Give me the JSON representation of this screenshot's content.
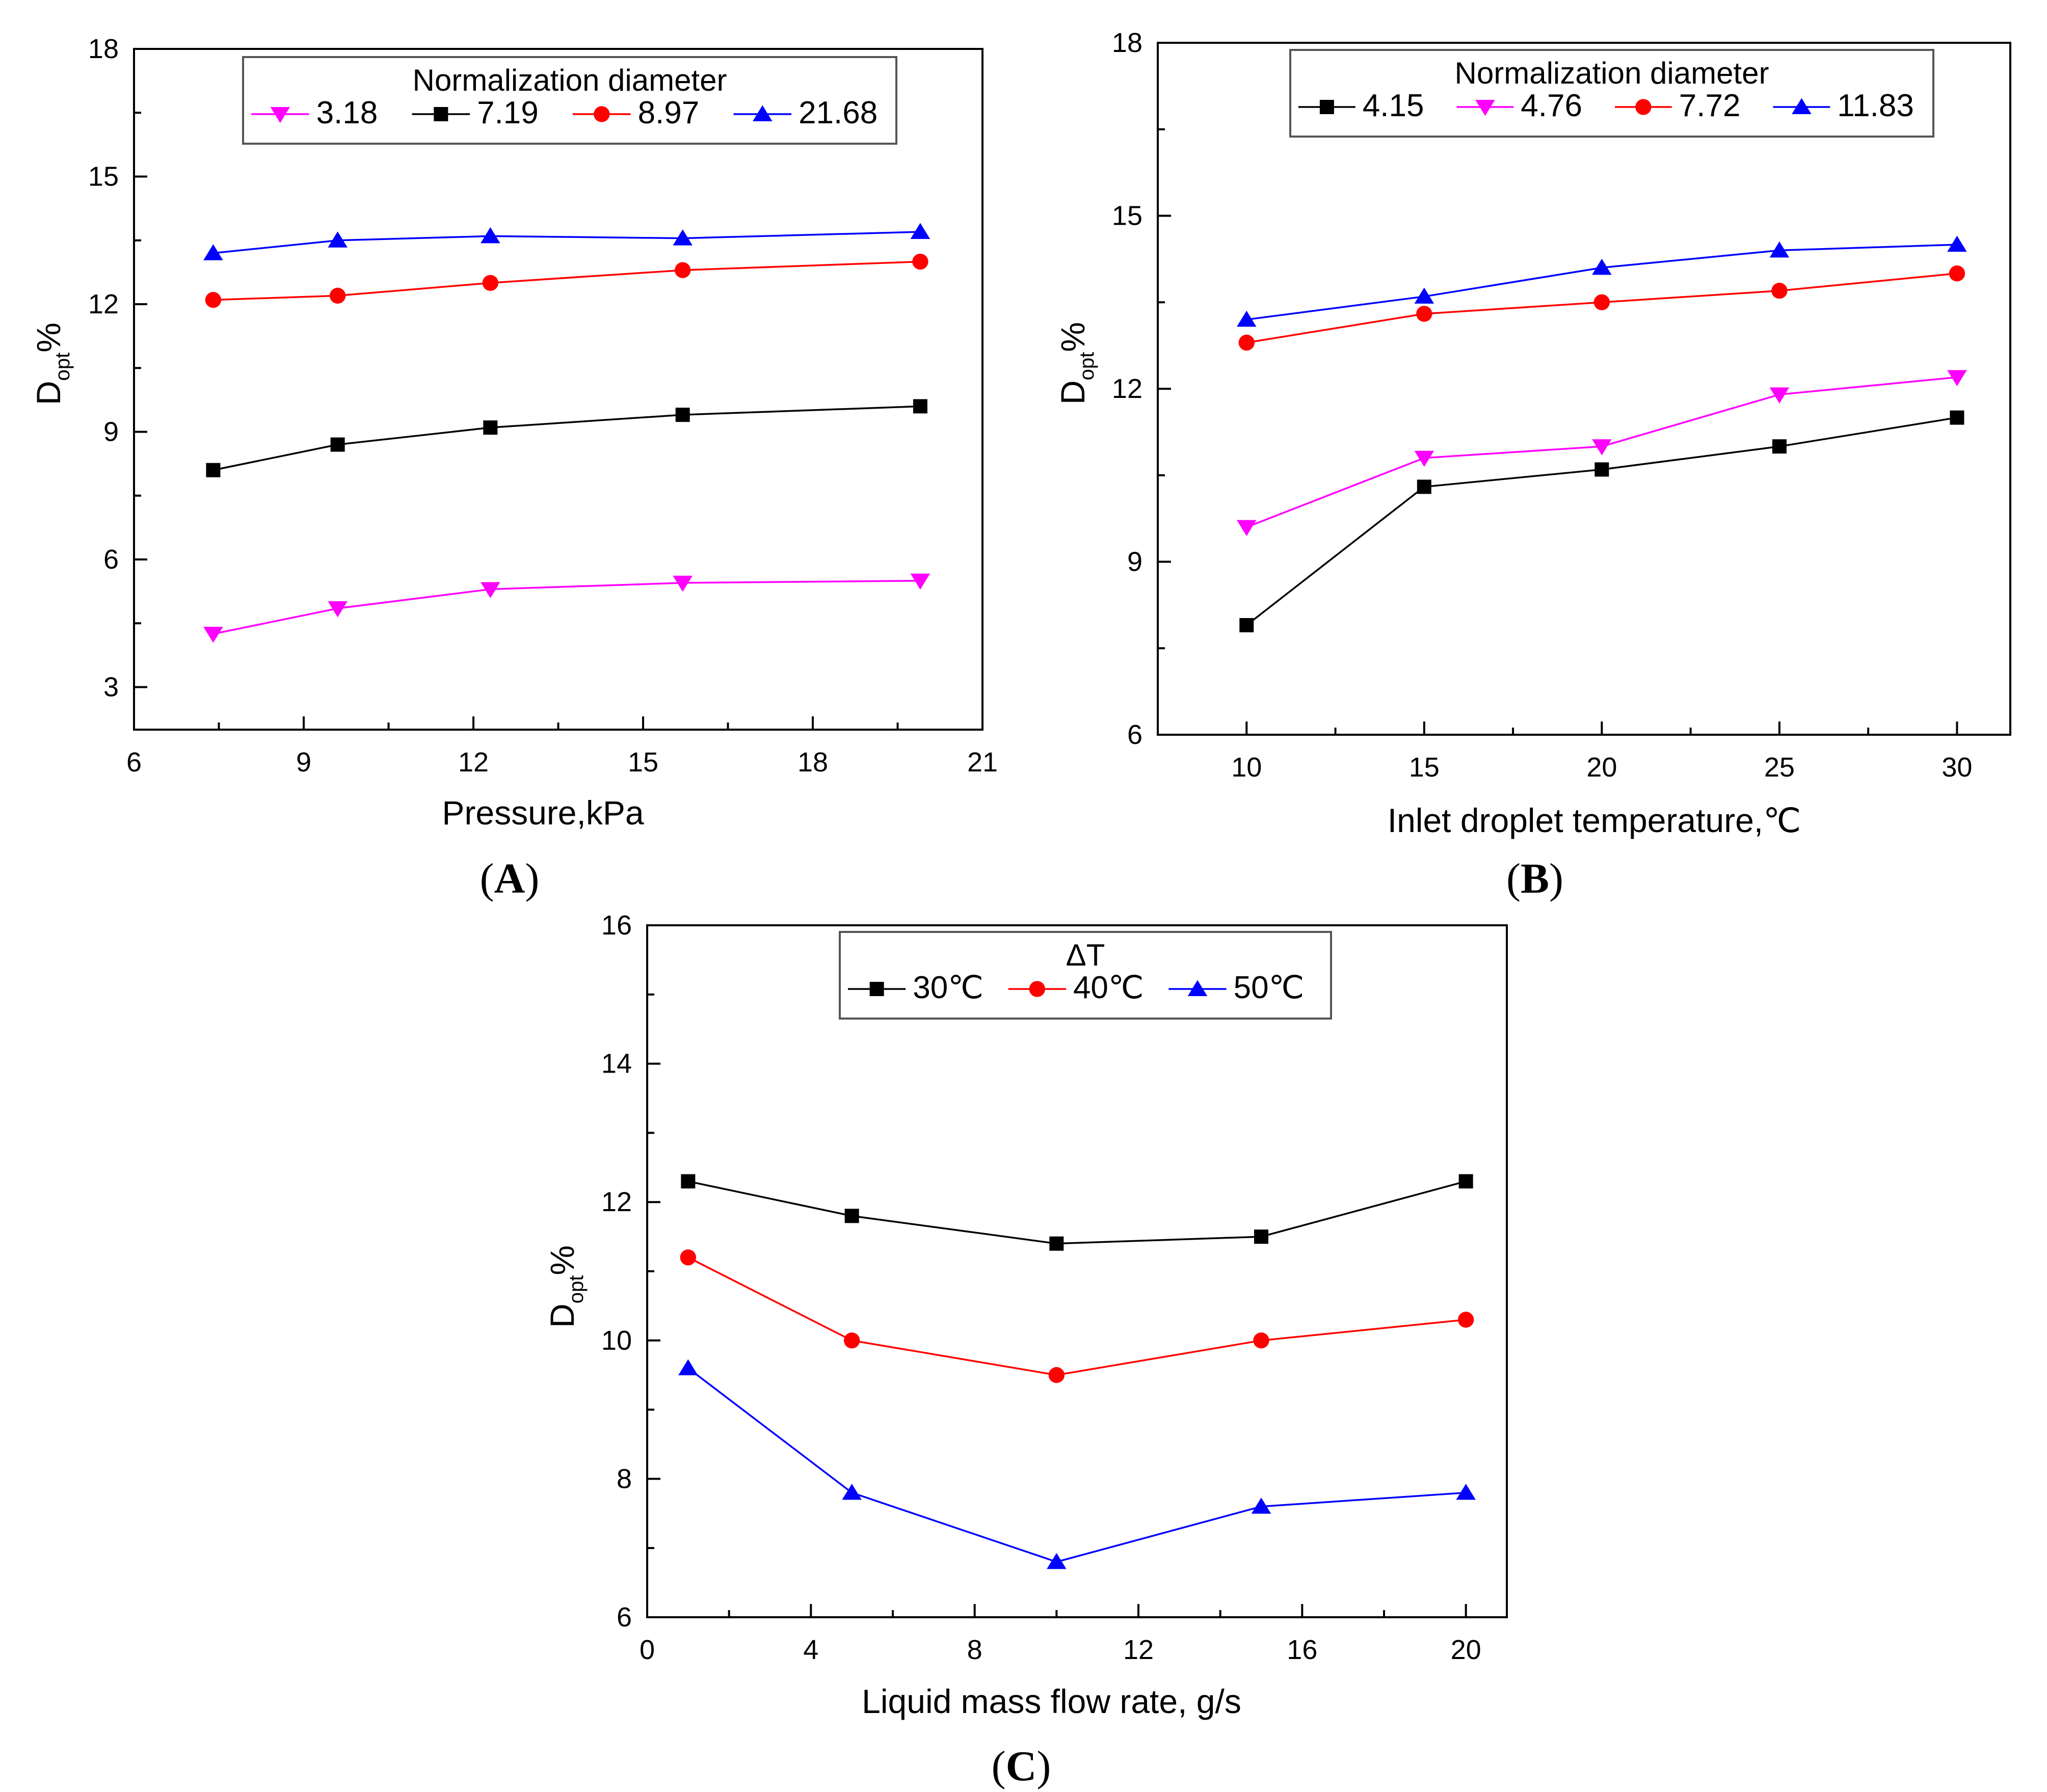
{
  "chart_data": [
    {
      "id": "A",
      "type": "line",
      "panel_label": "A",
      "xlabel": "Pressure,kPa",
      "ylabel": "D",
      "ylabel_sub": "opt",
      "ylabel_suffix": "%",
      "xlim": [
        6,
        21
      ],
      "ylim": [
        2,
        18
      ],
      "xticks": [
        6,
        9,
        12,
        15,
        18,
        21
      ],
      "yticks": [
        3,
        6,
        9,
        12,
        15,
        18
      ],
      "legend_title": "Normalization diameter",
      "legend_position": "top-center",
      "series": [
        {
          "name": "3.18",
          "color": "#ff00ff",
          "marker": "triangle-down",
          "x": [
            7.4,
            9.6,
            12.3,
            15.7,
            19.9
          ],
          "y": [
            4.25,
            4.85,
            5.3,
            5.45,
            5.5
          ]
        },
        {
          "name": "7.19",
          "color": "#000000",
          "marker": "square",
          "x": [
            7.4,
            9.6,
            12.3,
            15.7,
            19.9
          ],
          "y": [
            8.1,
            8.7,
            9.1,
            9.4,
            9.6
          ]
        },
        {
          "name": "8.97",
          "color": "#ff0000",
          "marker": "circle",
          "x": [
            7.4,
            9.6,
            12.3,
            15.7,
            19.9
          ],
          "y": [
            12.1,
            12.2,
            12.5,
            12.8,
            13.0
          ]
        },
        {
          "name": "21.68",
          "color": "#0000ff",
          "marker": "triangle-up",
          "x": [
            7.4,
            9.6,
            12.3,
            15.7,
            19.9
          ],
          "y": [
            13.2,
            13.5,
            13.6,
            13.55,
            13.7
          ]
        }
      ]
    },
    {
      "id": "B",
      "type": "line",
      "panel_label": "B",
      "xlabel": "Inlet droplet temperature,℃",
      "ylabel": "D",
      "ylabel_sub": "opt",
      "ylabel_suffix": "%",
      "xlim": [
        7.5,
        31.5
      ],
      "ylim": [
        6,
        18
      ],
      "xticks": [
        10,
        15,
        20,
        25,
        30
      ],
      "yticks": [
        6,
        9,
        12,
        15,
        18
      ],
      "legend_title": "Normalization diameter",
      "legend_position": "top-center",
      "series": [
        {
          "name": "4.15",
          "color": "#000000",
          "marker": "square",
          "x": [
            10,
            15,
            20,
            25,
            30
          ],
          "y": [
            7.9,
            10.3,
            10.6,
            11.0,
            11.5
          ]
        },
        {
          "name": "4.76",
          "color": "#ff00ff",
          "marker": "triangle-down",
          "x": [
            10,
            15,
            20,
            25,
            30
          ],
          "y": [
            9.6,
            10.8,
            11.0,
            11.9,
            12.2
          ]
        },
        {
          "name": "7.72",
          "color": "#ff0000",
          "marker": "circle",
          "x": [
            10,
            15,
            20,
            25,
            30
          ],
          "y": [
            12.8,
            13.3,
            13.5,
            13.7,
            14.0
          ]
        },
        {
          "name": "11.83",
          "color": "#0000ff",
          "marker": "triangle-up",
          "x": [
            10,
            15,
            20,
            25,
            30
          ],
          "y": [
            13.2,
            13.6,
            14.1,
            14.4,
            14.5
          ]
        }
      ]
    },
    {
      "id": "C",
      "type": "line",
      "panel_label": "C",
      "xlabel": "Liquid mass flow rate, g/s",
      "ylabel": "D",
      "ylabel_sub": "opt",
      "ylabel_suffix": "%",
      "xlim": [
        0,
        21
      ],
      "ylim": [
        6,
        16
      ],
      "xticks": [
        0,
        4,
        8,
        12,
        16,
        20
      ],
      "yticks": [
        6,
        8,
        10,
        12,
        14,
        16
      ],
      "legend_title": "ΔT",
      "legend_position": "top-center",
      "series": [
        {
          "name": "30℃",
          "color": "#000000",
          "marker": "square",
          "x": [
            1,
            5,
            10,
            15,
            20
          ],
          "y": [
            12.3,
            11.8,
            11.4,
            11.5,
            12.3
          ]
        },
        {
          "name": "40℃",
          "color": "#ff0000",
          "marker": "circle",
          "x": [
            1,
            5,
            10,
            15,
            20
          ],
          "y": [
            11.2,
            10.0,
            9.5,
            10.0,
            10.3
          ]
        },
        {
          "name": "50℃",
          "color": "#0000ff",
          "marker": "triangle-up",
          "x": [
            1,
            5,
            10,
            15,
            20
          ],
          "y": [
            9.6,
            7.8,
            6.8,
            7.6,
            7.8
          ]
        }
      ]
    }
  ]
}
